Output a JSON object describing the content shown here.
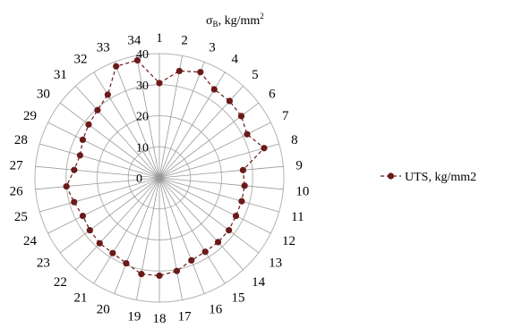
{
  "chart_data": {
    "type": "radar",
    "units_symbol": "σ",
    "units_subscript": "B",
    "units_rest": ", kg/mm",
    "units_sup": "2",
    "categories": [
      "1",
      "2",
      "3",
      "4",
      "5",
      "6",
      "7",
      "8",
      "9",
      "10",
      "11",
      "12",
      "13",
      "14",
      "15",
      "16",
      "17",
      "18",
      "19",
      "20",
      "21",
      "22",
      "23",
      "24",
      "25",
      "26",
      "27",
      "28",
      "29",
      "30",
      "31",
      "32",
      "33",
      "34"
    ],
    "r_ticks": [
      "0",
      "10",
      "20",
      "30",
      "40"
    ],
    "rlim": [
      0,
      40
    ],
    "series": [
      {
        "name": "UTS, kg/mm2",
        "values": [
          30.5,
          35,
          36.5,
          33.5,
          33.5,
          33,
          31.5,
          35,
          27,
          27.5,
          27.5,
          27.5,
          28,
          28,
          28,
          28.5,
          30.5,
          31.5,
          31.5,
          29.5,
          28.5,
          28.5,
          28,
          27.5,
          28.5,
          30,
          27.5,
          26.5,
          27.5,
          28.5,
          29.5,
          31.5,
          38.5,
          38.5
        ]
      }
    ],
    "legend_entry": "UTS, kg/mm2",
    "legend_position": "right",
    "colors": {
      "series": "#6b1a1a",
      "grid": "#b3b3b3",
      "axis": "#999999"
    },
    "grid": true
  }
}
